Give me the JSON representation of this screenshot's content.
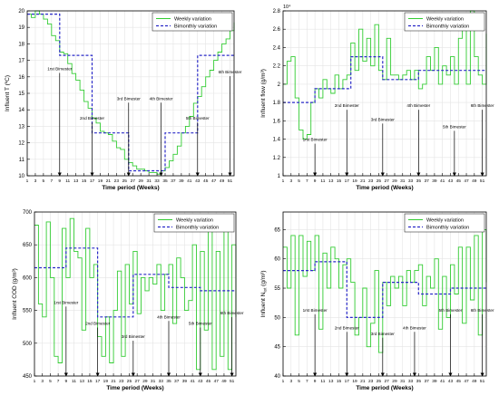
{
  "chart_data": [
    {
      "type": "line",
      "ylabel": "Influent T (ºC)",
      "xlabel": "Time period (Weeks)",
      "xlim": [
        1,
        52
      ],
      "ylim": [
        10,
        20
      ],
      "yticks": [
        10,
        11,
        12,
        13,
        14,
        15,
        16,
        17,
        18,
        19,
        20
      ],
      "xticks": [
        1,
        3,
        5,
        7,
        9,
        11,
        13,
        15,
        17,
        19,
        21,
        23,
        25,
        27,
        29,
        31,
        33,
        35,
        37,
        39,
        41,
        43,
        45,
        47,
        49,
        51
      ],
      "grid": true,
      "legend_position": "top-right",
      "series": [
        {
          "name": "Weekly variation",
          "style": "solid",
          "color": "#33cc33",
          "values": [
            19.8,
            19.6,
            20,
            19.8,
            19.5,
            19.2,
            18.5,
            18.2,
            17.5,
            17.4,
            16.8,
            16.2,
            15.8,
            15.2,
            14.5,
            14.1,
            13.5,
            13.2,
            12.7,
            12.6,
            12.5,
            12.1,
            11.7,
            11.6,
            11,
            10.8,
            10.6,
            10.4,
            10.4,
            10.3,
            10.2,
            10.2,
            10.1,
            10.3,
            10.5,
            10.9,
            11.3,
            11.8,
            12.6,
            13,
            13.6,
            14.4,
            14.8,
            15.4,
            16,
            16.4,
            17,
            17.5,
            18,
            18.3,
            18.8,
            19.3
          ]
        },
        {
          "name": "Bimonthly variation",
          "style": "dashed",
          "color": "#2a2ac8",
          "values": [
            19.8,
            19.8,
            19.8,
            19.8,
            19.8,
            19.8,
            19.8,
            19.8,
            17.3,
            17.3,
            17.3,
            17.3,
            17.3,
            17.3,
            17.3,
            17.3,
            12.6,
            12.6,
            12.6,
            12.6,
            12.6,
            12.6,
            12.6,
            12.6,
            12.6,
            10.3,
            10.3,
            10.3,
            10.3,
            10.3,
            10.3,
            10.3,
            10.3,
            10.3,
            12.6,
            12.6,
            12.6,
            12.6,
            12.6,
            12.6,
            12.6,
            12.6,
            17.3,
            17.3,
            17.3,
            17.3,
            17.3,
            17.3,
            17.3,
            17.3,
            17.3,
            17.3
          ]
        }
      ],
      "annotations": [
        {
          "text": "1rst Bimester",
          "x": 9,
          "y_label": 16.4,
          "y_tip": 10
        },
        {
          "text": "2nd Bimester",
          "x": 17,
          "y_label": 13.4,
          "y_tip": 10
        },
        {
          "text": "3rd Bimester",
          "x": 26,
          "y_label": 14.6,
          "y_tip": 10
        },
        {
          "text": "4th Bimester",
          "x": 34,
          "y_label": 14.6,
          "y_tip": 10
        },
        {
          "text": "5th Bimester",
          "x": 43,
          "y_label": 13.4,
          "y_tip": 10
        },
        {
          "text": "6th Bimester",
          "x": 51,
          "y_label": 16.2,
          "y_tip": 10
        }
      ]
    },
    {
      "type": "line",
      "ylabel": "Influent flow (g/m³)",
      "xlabel": "Time period (Weeks)",
      "exponent_label": "10⁴",
      "xlim": [
        1,
        52
      ],
      "ylim": [
        1,
        2.8
      ],
      "yticks": [
        1,
        1.2,
        1.4,
        1.6,
        1.8,
        2,
        2.2,
        2.4,
        2.6,
        2.8
      ],
      "xticks": [
        1,
        3,
        5,
        7,
        9,
        11,
        13,
        15,
        17,
        19,
        21,
        23,
        25,
        27,
        29,
        31,
        33,
        35,
        37,
        39,
        41,
        43,
        45,
        47,
        49,
        51
      ],
      "grid": true,
      "legend_position": "top-right",
      "series": [
        {
          "name": "Weekly variation",
          "style": "solid",
          "color": "#33cc33",
          "values": [
            2.0,
            2.25,
            2.3,
            1.85,
            1.5,
            1.4,
            1.45,
            1.8,
            1.95,
            1.85,
            2.05,
            1.95,
            1.9,
            2.1,
            1.95,
            2.05,
            2.1,
            2.45,
            2.15,
            2.6,
            2.25,
            2.5,
            2.2,
            2.65,
            2.15,
            2.05,
            2.5,
            2.1,
            2.1,
            2.05,
            2.1,
            2.15,
            2.05,
            2.15,
            1.95,
            2.0,
            2.3,
            2.15,
            2.4,
            2.0,
            2.2,
            2.1,
            2.3,
            2.0,
            2.5,
            2.75,
            2.0,
            2.8,
            2.3,
            2.1,
            2.0,
            2.55
          ]
        },
        {
          "name": "Bimonthly variation",
          "style": "dashed",
          "color": "#2a2ac8",
          "values": [
            1.8,
            1.8,
            1.8,
            1.8,
            1.8,
            1.8,
            1.8,
            1.8,
            1.95,
            1.95,
            1.95,
            1.95,
            1.95,
            1.95,
            1.95,
            1.95,
            1.95,
            2.3,
            2.3,
            2.3,
            2.3,
            2.3,
            2.3,
            2.3,
            2.3,
            2.05,
            2.05,
            2.05,
            2.05,
            2.05,
            2.05,
            2.05,
            2.05,
            2.05,
            2.15,
            2.15,
            2.15,
            2.15,
            2.15,
            2.15,
            2.15,
            2.15,
            2.15,
            2.15,
            2.15,
            2.15,
            2.15,
            2.15,
            2.15,
            2.15,
            2.15,
            2.15
          ]
        }
      ],
      "annotations": [
        {
          "text": "1rst Bimester",
          "x": 9,
          "y_label": 1.38,
          "y_tip": 1
        },
        {
          "text": "2nd Bimester",
          "x": 17,
          "y_label": 1.75,
          "y_tip": 1
        },
        {
          "text": "3rd Bimester",
          "x": 26,
          "y_label": 1.6,
          "y_tip": 1
        },
        {
          "text": "4th Bimester",
          "x": 35,
          "y_label": 1.75,
          "y_tip": 1
        },
        {
          "text": "5th Bimester",
          "x": 44,
          "y_label": 1.52,
          "y_tip": 1
        },
        {
          "text": "6th Bimester",
          "x": 51,
          "y_label": 1.75,
          "y_tip": 1
        }
      ]
    },
    {
      "type": "line",
      "ylabel": "Influent COD (g/m³)",
      "xlabel": "Time period (Weeks)",
      "xlim": [
        1,
        52
      ],
      "ylim": [
        450,
        700
      ],
      "yticks": [
        450,
        500,
        550,
        600,
        650,
        700
      ],
      "xticks": [
        1,
        3,
        5,
        7,
        9,
        11,
        13,
        15,
        17,
        19,
        21,
        23,
        25,
        27,
        29,
        31,
        33,
        35,
        37,
        39,
        41,
        43,
        45,
        47,
        49,
        51
      ],
      "grid": true,
      "legend_position": "top-right",
      "series": [
        {
          "name": "Weekly variation",
          "style": "solid",
          "color": "#33cc33",
          "values": [
            680,
            560,
            540,
            685,
            600,
            480,
            470,
            675,
            600,
            690,
            640,
            630,
            520,
            675,
            600,
            620,
            510,
            480,
            540,
            470,
            550,
            610,
            480,
            620,
            560,
            640,
            545,
            600,
            580,
            600,
            590,
            620,
            550,
            605,
            620,
            530,
            630,
            600,
            550,
            565,
            650,
            460,
            640,
            520,
            690,
            460,
            640,
            480,
            690,
            460,
            650,
            540
          ]
        },
        {
          "name": "Bimonthly variation",
          "style": "dashed",
          "color": "#2a2ac8",
          "values": [
            615,
            615,
            615,
            615,
            615,
            615,
            615,
            615,
            645,
            645,
            645,
            645,
            645,
            645,
            645,
            645,
            540,
            540,
            540,
            540,
            540,
            540,
            540,
            540,
            540,
            605,
            605,
            605,
            605,
            605,
            605,
            605,
            605,
            605,
            585,
            585,
            585,
            585,
            585,
            585,
            585,
            585,
            580,
            580,
            580,
            580,
            580,
            580,
            580,
            580,
            580,
            580
          ]
        }
      ],
      "annotations": [
        {
          "text": "1rst Bimester",
          "x": 9,
          "y_label": 560,
          "y_tip": 450
        },
        {
          "text": "2nd Bimester",
          "x": 17,
          "y_label": 528,
          "y_tip": 450
        },
        {
          "text": "3rd Bimester",
          "x": 26,
          "y_label": 508,
          "y_tip": 450
        },
        {
          "text": "4th Bimester",
          "x": 35,
          "y_label": 538,
          "y_tip": 450
        },
        {
          "text": "5th Bimester",
          "x": 43,
          "y_label": 528,
          "y_tip": 450
        },
        {
          "text": "6th Bimester",
          "x": 51,
          "y_label": 544,
          "y_tip": 450
        }
      ]
    },
    {
      "type": "line",
      "ylabel": "Influent N",
      "ylabel_sub": "tot",
      "ylabel_unit": " (g/m³)",
      "xlabel": "Time period (Weeks)",
      "xlim": [
        1,
        52
      ],
      "ylim": [
        40,
        68
      ],
      "yticks": [
        40,
        45,
        50,
        55,
        60,
        65
      ],
      "xticks": [
        1,
        3,
        5,
        7,
        9,
        11,
        13,
        15,
        17,
        19,
        21,
        23,
        25,
        27,
        29,
        31,
        33,
        35,
        37,
        39,
        41,
        43,
        45,
        47,
        49,
        51
      ],
      "grid": true,
      "legend_position": "top-right",
      "series": [
        {
          "name": "Weekly variation",
          "style": "solid",
          "color": "#33cc33",
          "values": [
            62,
            55,
            64,
            47,
            64,
            57,
            63,
            58,
            64,
            48,
            61,
            55,
            62,
            60,
            55,
            59,
            60,
            56,
            47,
            50,
            55,
            45,
            49,
            58,
            44,
            56,
            52,
            57,
            55,
            57,
            52,
            58,
            56,
            58,
            59,
            52,
            57,
            55,
            60,
            48,
            57,
            50,
            59,
            54,
            62,
            49,
            62,
            53,
            64,
            47,
            65,
            56
          ]
        },
        {
          "name": "Bimonthly variation",
          "style": "dashed",
          "color": "#2a2ac8",
          "values": [
            58,
            58,
            58,
            58,
            58,
            58,
            58,
            58,
            59.5,
            59.5,
            59.5,
            59.5,
            59.5,
            59.5,
            59.5,
            59.5,
            50,
            50,
            50,
            50,
            50,
            50,
            50,
            50,
            50,
            56,
            56,
            56,
            56,
            56,
            56,
            56,
            56,
            56,
            54,
            54,
            54,
            54,
            54,
            54,
            54,
            54,
            55,
            55,
            55,
            55,
            55,
            55,
            55,
            55,
            55,
            55
          ]
        }
      ],
      "annotations": [
        {
          "text": "1rst Bimester",
          "x": 9,
          "y_label": 51,
          "y_tip": 40
        },
        {
          "text": "2nd Bimester",
          "x": 17,
          "y_label": 48,
          "y_tip": 40
        },
        {
          "text": "3rd Bimester",
          "x": 26,
          "y_label": 47,
          "y_tip": 40
        },
        {
          "text": "4th Bimester",
          "x": 34,
          "y_label": 48,
          "y_tip": 40
        },
        {
          "text": "5th Bimester",
          "x": 43,
          "y_label": 51,
          "y_tip": 40
        },
        {
          "text": "6th Bimester",
          "x": 51,
          "y_label": 51,
          "y_tip": 40
        }
      ]
    }
  ]
}
